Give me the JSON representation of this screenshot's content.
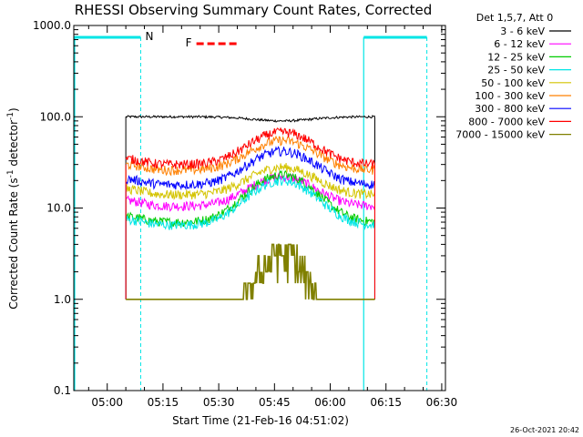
{
  "chart_data": {
    "type": "line",
    "title": "RHESSI Observing Summary Count Rates, Corrected",
    "xlabel": "Start Time (21-Feb-16 04:51:02)",
    "ylabel": "Corrected Count Rate (s",
    "ylabel_sup1": "-1",
    "ylabel_mid": " detector",
    "ylabel_sup2": "-1",
    "ylabel_end": ")",
    "yscale": "log",
    "ylim": [
      0.1,
      1000
    ],
    "xlim": [
      "04:51",
      "06:31"
    ],
    "x_ticks": [
      "05:00",
      "05:15",
      "05:30",
      "05:45",
      "06:00",
      "06:15",
      "06:30"
    ],
    "y_ticks": [
      "0.1",
      "1.0",
      "10.0",
      "100.0",
      "1000.0"
    ],
    "legend_header": "Det 1,5,7, Att 0",
    "legend_position": "right",
    "timestamp": "26-Oct-2021 20:42",
    "data_start": "05:05",
    "data_end": "06:12",
    "flare_peak": "05:47",
    "series": [
      {
        "name": "3 - 6 keV",
        "color": "#000000",
        "baseline": 100,
        "peak": 90
      },
      {
        "name": "6 - 12 keV",
        "color": "#ff00ff",
        "baseline": 10.5,
        "peak": 22
      },
      {
        "name": "12 - 25 keV",
        "color": "#00cc00",
        "baseline": 7,
        "peak": 23
      },
      {
        "name": "25 - 50 keV",
        "color": "#00e5e5",
        "baseline": 6.5,
        "peak": 20
      },
      {
        "name": "50 - 100 keV",
        "color": "#d4c400",
        "baseline": 14,
        "peak": 28
      },
      {
        "name": "100 - 300 keV",
        "color": "#ff8000",
        "baseline": 26,
        "peak": 55
      },
      {
        "name": "300 - 800 keV",
        "color": "#0000ff",
        "baseline": 18,
        "peak": 42
      },
      {
        "name": "800 - 7000 keV",
        "color": "#ff0000",
        "baseline": 30,
        "peak": 68
      },
      {
        "name": "7000 - 15000 keV",
        "color": "#808000",
        "baseline": 1,
        "peak": 3.5
      }
    ],
    "annotations": {
      "night_label": "N",
      "flare_label": "F",
      "cyan_color": "#00e5e5",
      "flare_color": "#ff0000",
      "night_bars": [
        [
          "04:51",
          "05:09"
        ],
        [
          "06:09",
          "06:26"
        ]
      ],
      "night_dashed_lines": [
        "05:09",
        "06:26"
      ],
      "night_solid_lines": [
        "04:51",
        "06:09"
      ],
      "flare_bar": [
        "05:24",
        "05:35"
      ]
    }
  }
}
